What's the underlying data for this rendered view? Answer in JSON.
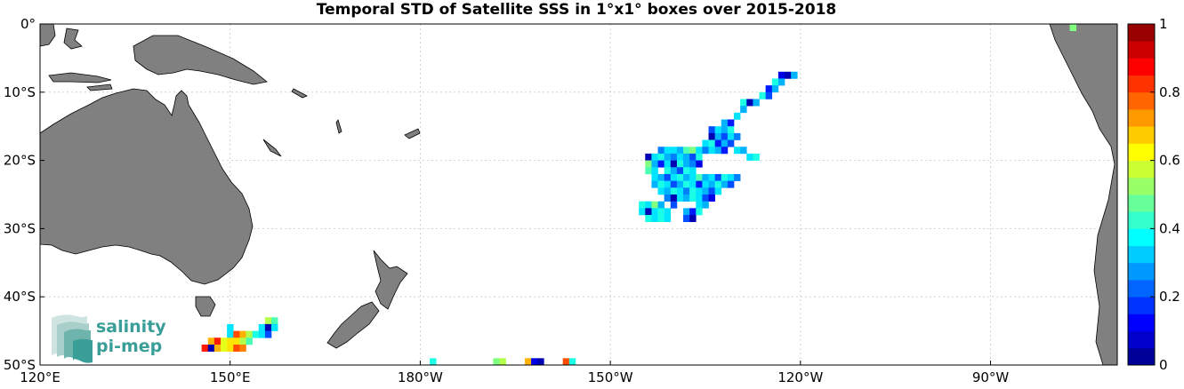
{
  "title": "Temporal STD of Satellite SSS in 1°x1° boxes over 2015-2018",
  "map": {
    "lon_range": [
      120,
      290
    ],
    "lat_range": [
      -50,
      0
    ],
    "x_ticks": [
      {
        "lon": 120,
        "label": "120°E"
      },
      {
        "lon": 150,
        "label": "150°E"
      },
      {
        "lon": 180,
        "label": "180°W"
      },
      {
        "lon": 210,
        "label": "150°W"
      },
      {
        "lon": 240,
        "label": "120°W"
      },
      {
        "lon": 270,
        "label": "90°W"
      }
    ],
    "y_ticks": [
      {
        "lat": 0,
        "label": "0°"
      },
      {
        "lat": -10,
        "label": "10°S"
      },
      {
        "lat": -20,
        "label": "20°S"
      },
      {
        "lat": -30,
        "label": "30°S"
      },
      {
        "lat": -40,
        "label": "40°S"
      },
      {
        "lat": -50,
        "label": "50°S"
      }
    ],
    "grid": true,
    "land_color": "#808080",
    "ocean_color": "#ffffff"
  },
  "colorbar": {
    "min": 0,
    "max": 1,
    "ticks": [
      "0",
      "0.2",
      "0.4",
      "0.6",
      "0.8",
      "1"
    ],
    "colormap": "jet",
    "levels": 20
  },
  "logo": {
    "line1": "salinity",
    "line2": "pi-mep",
    "color": "#3a9e98"
  },
  "chart_data": {
    "type": "heatmap",
    "title": "Temporal STD of Satellite SSS in 1°x1° boxes over 2015-2018",
    "xlabel": "",
    "ylabel": "",
    "color_range": [
      0,
      1
    ],
    "cells": [
      {
        "lon": 237,
        "lat": -7.5,
        "value": 0.1
      },
      {
        "lon": 238,
        "lat": -7.5,
        "value": 0.05
      },
      {
        "lon": 239,
        "lat": -7.5,
        "value": 0.3
      },
      {
        "lon": 236,
        "lat": -8.5,
        "value": 0.4
      },
      {
        "lon": 237,
        "lat": -8.5,
        "value": 0.3
      },
      {
        "lon": 235,
        "lat": -9.5,
        "value": 0.15
      },
      {
        "lon": 236,
        "lat": -9.5,
        "value": 0.3
      },
      {
        "lon": 234,
        "lat": -10.5,
        "value": 0.4
      },
      {
        "lon": 235,
        "lat": -10.5,
        "value": 0.2
      },
      {
        "lon": 231,
        "lat": -11.5,
        "value": 0.4
      },
      {
        "lon": 232,
        "lat": -11.5,
        "value": 0.05
      },
      {
        "lon": 233,
        "lat": -11.5,
        "value": 0.3
      },
      {
        "lon": 231,
        "lat": -12.5,
        "value": 0.3
      },
      {
        "lon": 230,
        "lat": -13.5,
        "value": 0.35
      },
      {
        "lon": 228,
        "lat": -14.5,
        "value": 0.3
      },
      {
        "lon": 229,
        "lat": -14.5,
        "value": 0.15
      },
      {
        "lon": 226,
        "lat": -15.5,
        "value": 0.2
      },
      {
        "lon": 227,
        "lat": -15.5,
        "value": 0.35
      },
      {
        "lon": 228,
        "lat": -15.5,
        "value": 0.3
      },
      {
        "lon": 229,
        "lat": -15.5,
        "value": 0.4
      },
      {
        "lon": 226,
        "lat": -16.5,
        "value": 0.05
      },
      {
        "lon": 227,
        "lat": -16.5,
        "value": 0.3
      },
      {
        "lon": 228,
        "lat": -16.5,
        "value": 0.2
      },
      {
        "lon": 229,
        "lat": -16.5,
        "value": 0.35
      },
      {
        "lon": 230,
        "lat": -16.5,
        "value": 0.25
      },
      {
        "lon": 225,
        "lat": -17.5,
        "value": 0.35
      },
      {
        "lon": 226,
        "lat": -17.5,
        "value": 0.4
      },
      {
        "lon": 227,
        "lat": -17.5,
        "value": 0.15
      },
      {
        "lon": 228,
        "lat": -17.5,
        "value": 0.3
      },
      {
        "lon": 229,
        "lat": -17.5,
        "value": 0.2
      },
      {
        "lon": 218,
        "lat": -18.5,
        "value": 0.25
      },
      {
        "lon": 219,
        "lat": -18.5,
        "value": 0.35
      },
      {
        "lon": 220,
        "lat": -18.5,
        "value": 0.35
      },
      {
        "lon": 221,
        "lat": -18.5,
        "value": 0.3
      },
      {
        "lon": 222,
        "lat": -18.5,
        "value": 0.45
      },
      {
        "lon": 223,
        "lat": -18.5,
        "value": 0.5
      },
      {
        "lon": 224,
        "lat": -18.5,
        "value": 0.35
      },
      {
        "lon": 225,
        "lat": -18.5,
        "value": 0.25
      },
      {
        "lon": 226,
        "lat": -18.5,
        "value": 0.35
      },
      {
        "lon": 227,
        "lat": -18.5,
        "value": 0.3
      },
      {
        "lon": 228,
        "lat": -18.5,
        "value": 0.15
      },
      {
        "lon": 230,
        "lat": -18.5,
        "value": 0.35
      },
      {
        "lon": 231,
        "lat": -18.5,
        "value": 0.3
      },
      {
        "lon": 216,
        "lat": -19.5,
        "value": 0.05
      },
      {
        "lon": 217,
        "lat": -19.5,
        "value": 0.35
      },
      {
        "lon": 218,
        "lat": -19.5,
        "value": 0.4
      },
      {
        "lon": 219,
        "lat": -19.5,
        "value": 0.3
      },
      {
        "lon": 220,
        "lat": -19.5,
        "value": 0.25
      },
      {
        "lon": 221,
        "lat": -19.5,
        "value": 0.35
      },
      {
        "lon": 222,
        "lat": -19.5,
        "value": 0.3
      },
      {
        "lon": 223,
        "lat": -19.5,
        "value": 0.2
      },
      {
        "lon": 224,
        "lat": -19.5,
        "value": 0.4
      },
      {
        "lon": 232,
        "lat": -19.5,
        "value": 0.35
      },
      {
        "lon": 233,
        "lat": -19.5,
        "value": 0.4
      },
      {
        "lon": 216,
        "lat": -20.5,
        "value": 0.5
      },
      {
        "lon": 217,
        "lat": -20.5,
        "value": 0.3
      },
      {
        "lon": 218,
        "lat": -20.5,
        "value": 0.15
      },
      {
        "lon": 219,
        "lat": -20.5,
        "value": 0.35
      },
      {
        "lon": 220,
        "lat": -20.5,
        "value": 0.05
      },
      {
        "lon": 221,
        "lat": -20.5,
        "value": 0.4
      },
      {
        "lon": 222,
        "lat": -20.5,
        "value": 0.3
      },
      {
        "lon": 223,
        "lat": -20.5,
        "value": 0.25
      },
      {
        "lon": 224,
        "lat": -20.5,
        "value": 0.1
      },
      {
        "lon": 216,
        "lat": -21.5,
        "value": 0.45
      },
      {
        "lon": 217,
        "lat": -21.5,
        "value": 0.35
      },
      {
        "lon": 219,
        "lat": -21.5,
        "value": 0.4
      },
      {
        "lon": 220,
        "lat": -21.5,
        "value": 0.3
      },
      {
        "lon": 221,
        "lat": -21.5,
        "value": 0.2
      },
      {
        "lon": 222,
        "lat": -21.5,
        "value": 0.4
      },
      {
        "lon": 223,
        "lat": -21.5,
        "value": 0.35
      },
      {
        "lon": 217,
        "lat": -22.5,
        "value": 0.35
      },
      {
        "lon": 218,
        "lat": -22.5,
        "value": 0.3
      },
      {
        "lon": 219,
        "lat": -22.5,
        "value": 0.2
      },
      {
        "lon": 220,
        "lat": -22.5,
        "value": 0.35
      },
      {
        "lon": 221,
        "lat": -22.5,
        "value": 0.4
      },
      {
        "lon": 222,
        "lat": -22.5,
        "value": 0.3
      },
      {
        "lon": 223,
        "lat": -22.5,
        "value": 0.35
      },
      {
        "lon": 224,
        "lat": -22.5,
        "value": 0.45
      },
      {
        "lon": 225,
        "lat": -22.5,
        "value": 0.3
      },
      {
        "lon": 226,
        "lat": -22.5,
        "value": 0.35
      },
      {
        "lon": 227,
        "lat": -22.5,
        "value": 0.2
      },
      {
        "lon": 228,
        "lat": -22.5,
        "value": 0.4
      },
      {
        "lon": 229,
        "lat": -22.5,
        "value": 0.35
      },
      {
        "lon": 230,
        "lat": -22.5,
        "value": 0.25
      },
      {
        "lon": 217,
        "lat": -23.5,
        "value": 0.3
      },
      {
        "lon": 218,
        "lat": -23.5,
        "value": 0.4
      },
      {
        "lon": 219,
        "lat": -23.5,
        "value": 0.35
      },
      {
        "lon": 220,
        "lat": -23.5,
        "value": 0.2
      },
      {
        "lon": 221,
        "lat": -23.5,
        "value": 0.3
      },
      {
        "lon": 222,
        "lat": -23.5,
        "value": 0.4
      },
      {
        "lon": 223,
        "lat": -23.5,
        "value": 0.35
      },
      {
        "lon": 224,
        "lat": -23.5,
        "value": 0.15
      },
      {
        "lon": 225,
        "lat": -23.5,
        "value": 0.35
      },
      {
        "lon": 226,
        "lat": -23.5,
        "value": 0.3
      },
      {
        "lon": 227,
        "lat": -23.5,
        "value": 0.4
      },
      {
        "lon": 228,
        "lat": -23.5,
        "value": 0.3
      },
      {
        "lon": 229,
        "lat": -23.5,
        "value": 0.2
      },
      {
        "lon": 218,
        "lat": -24.5,
        "value": 0.35
      },
      {
        "lon": 219,
        "lat": -24.5,
        "value": 0.3
      },
      {
        "lon": 220,
        "lat": -24.5,
        "value": 0.4
      },
      {
        "lon": 221,
        "lat": -24.5,
        "value": 0.35
      },
      {
        "lon": 222,
        "lat": -24.5,
        "value": 0.25
      },
      {
        "lon": 223,
        "lat": -24.5,
        "value": 0.4
      },
      {
        "lon": 224,
        "lat": -24.5,
        "value": 0.35
      },
      {
        "lon": 225,
        "lat": -24.5,
        "value": 0.3
      },
      {
        "lon": 226,
        "lat": -24.5,
        "value": 0.2
      },
      {
        "lon": 227,
        "lat": -24.5,
        "value": 0.35
      },
      {
        "lon": 219,
        "lat": -25.5,
        "value": 0.25
      },
      {
        "lon": 220,
        "lat": -25.5,
        "value": 0.05
      },
      {
        "lon": 221,
        "lat": -25.5,
        "value": 0.35
      },
      {
        "lon": 222,
        "lat": -25.5,
        "value": 0.3
      },
      {
        "lon": 223,
        "lat": -25.5,
        "value": 0.4
      },
      {
        "lon": 224,
        "lat": -25.5,
        "value": 0.35
      },
      {
        "lon": 225,
        "lat": -25.5,
        "value": 0.2
      },
      {
        "lon": 226,
        "lat": -25.5,
        "value": 0.1
      },
      {
        "lon": 215,
        "lat": -26.5,
        "value": 0.4
      },
      {
        "lon": 216,
        "lat": -26.5,
        "value": 0.35
      },
      {
        "lon": 217,
        "lat": -26.5,
        "value": 0.5
      },
      {
        "lon": 218,
        "lat": -26.5,
        "value": 0.3
      },
      {
        "lon": 220,
        "lat": -26.5,
        "value": 0.2
      },
      {
        "lon": 224,
        "lat": -26.5,
        "value": 0.35
      },
      {
        "lon": 225,
        "lat": -26.5,
        "value": 0.3
      },
      {
        "lon": 215,
        "lat": -27.5,
        "value": 0.35
      },
      {
        "lon": 216,
        "lat": -27.5,
        "value": 0.05
      },
      {
        "lon": 217,
        "lat": -27.5,
        "value": 0.35
      },
      {
        "lon": 218,
        "lat": -27.5,
        "value": 0.4
      },
      {
        "lon": 219,
        "lat": -27.5,
        "value": 0.35
      },
      {
        "lon": 222,
        "lat": -27.5,
        "value": 0.3
      },
      {
        "lon": 223,
        "lat": -27.5,
        "value": 0.15
      },
      {
        "lon": 224,
        "lat": -27.5,
        "value": 0.4
      },
      {
        "lon": 216,
        "lat": -28.5,
        "value": 0.4
      },
      {
        "lon": 217,
        "lat": -28.5,
        "value": 0.35
      },
      {
        "lon": 218,
        "lat": -28.5,
        "value": 0.4
      },
      {
        "lon": 219,
        "lat": -28.5,
        "value": 0.35
      },
      {
        "lon": 222,
        "lat": -28.5,
        "value": 0.2
      },
      {
        "lon": 223,
        "lat": -28.5,
        "value": 0.05
      },
      {
        "lon": 156,
        "lat": -43.5,
        "value": 0.55
      },
      {
        "lon": 157,
        "lat": -43.5,
        "value": 0.45
      },
      {
        "lon": 150,
        "lat": -44.5,
        "value": 0.35
      },
      {
        "lon": 155,
        "lat": -44.5,
        "value": 0.35
      },
      {
        "lon": 156,
        "lat": -44.5,
        "value": 0.05
      },
      {
        "lon": 157,
        "lat": -44.5,
        "value": 0.35
      },
      {
        "lon": 150,
        "lat": -45.5,
        "value": 0.35
      },
      {
        "lon": 151,
        "lat": -45.5,
        "value": 0.8
      },
      {
        "lon": 152,
        "lat": -45.5,
        "value": 0.7
      },
      {
        "lon": 153,
        "lat": -45.5,
        "value": 0.55
      },
      {
        "lon": 154,
        "lat": -45.5,
        "value": 0.4
      },
      {
        "lon": 155,
        "lat": -45.5,
        "value": 0.35
      },
      {
        "lon": 156,
        "lat": -45.5,
        "value": 0.2
      },
      {
        "lon": 147,
        "lat": -46.5,
        "value": 0.7
      },
      {
        "lon": 148,
        "lat": -46.5,
        "value": 0.85
      },
      {
        "lon": 149,
        "lat": -46.5,
        "value": 0.6
      },
      {
        "lon": 150,
        "lat": -46.5,
        "value": 0.65
      },
      {
        "lon": 151,
        "lat": -46.5,
        "value": 0.65
      },
      {
        "lon": 152,
        "lat": -46.5,
        "value": 0.55
      },
      {
        "lon": 153,
        "lat": -46.5,
        "value": 0.45
      },
      {
        "lon": 146,
        "lat": -47.5,
        "value": 0.85
      },
      {
        "lon": 147,
        "lat": -47.5,
        "value": 0.05
      },
      {
        "lon": 148,
        "lat": -47.5,
        "value": 0.7
      },
      {
        "lon": 149,
        "lat": -47.5,
        "value": 0.6
      },
      {
        "lon": 150,
        "lat": -47.5,
        "value": 0.65
      },
      {
        "lon": 151,
        "lat": -47.5,
        "value": 0.8
      },
      {
        "lon": 152,
        "lat": -47.5,
        "value": 0.75
      },
      {
        "lon": 182,
        "lat": -49.5,
        "value": 0.4
      },
      {
        "lon": 192,
        "lat": -49.5,
        "value": 0.5
      },
      {
        "lon": 193,
        "lat": -49.5,
        "value": 0.55
      },
      {
        "lon": 197,
        "lat": -49.5,
        "value": 0.7
      },
      {
        "lon": 198,
        "lat": -49.5,
        "value": 0.1
      },
      {
        "lon": 199,
        "lat": -49.5,
        "value": 0.05
      },
      {
        "lon": 203,
        "lat": -49.5,
        "value": 0.8
      },
      {
        "lon": 204,
        "lat": -49.5,
        "value": 0.4
      },
      {
        "lon": 283,
        "lat": -0.5,
        "value": 0.5
      }
    ]
  }
}
